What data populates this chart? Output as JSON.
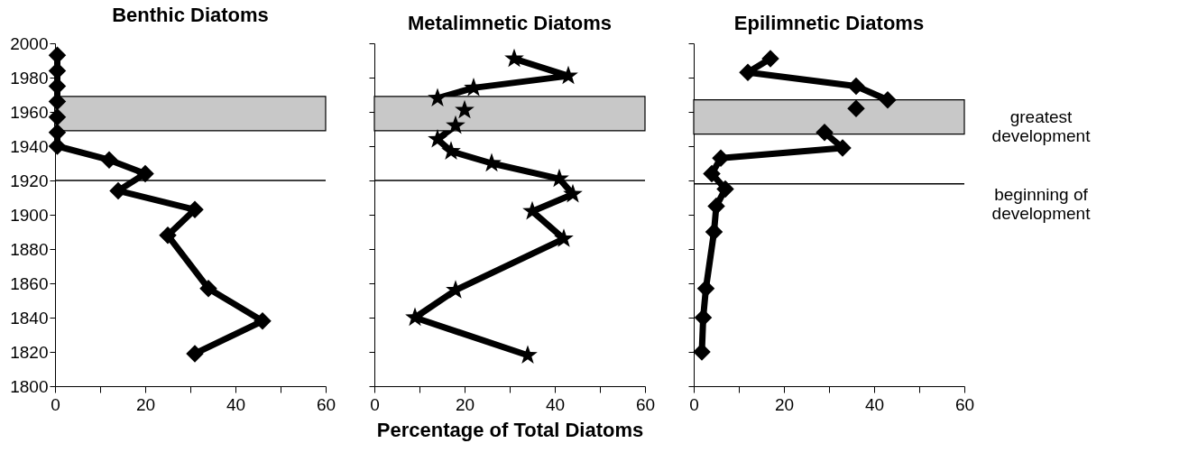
{
  "chart_data": [
    {
      "type": "line",
      "title": "Benthic Diatoms",
      "marker": "diamond",
      "line_style": "solid",
      "xlim": [
        0,
        60
      ],
      "xticks": [
        0,
        {
          "value": 10,
          "label": null
        },
        20,
        {
          "value": 30,
          "label": null
        },
        40,
        {
          "value": 50,
          "label": null
        },
        60
      ],
      "ylim": [
        1800,
        2000
      ],
      "yticks": [
        1800,
        1820,
        1840,
        1860,
        1880,
        1900,
        1920,
        1940,
        1960,
        1980,
        2000
      ],
      "series": [
        {
          "color": "#000000",
          "x": [
            0.5,
            0.5,
            0.5,
            0.5,
            0.5,
            0.5,
            0.5,
            12,
            20,
            14,
            31,
            25,
            34,
            46,
            31
          ],
          "values": [
            1993,
            1984,
            1975,
            1966,
            1957,
            1948,
            1940,
            1932,
            1924,
            1914,
            1903,
            1888,
            1857,
            1838,
            1819
          ]
        }
      ],
      "bands": [
        {
          "axis": "y",
          "from": 1949,
          "to": 1969,
          "color": "#c8c8c8"
        }
      ],
      "ref_lines": [
        {
          "axis": "y",
          "value": 1920,
          "color": "#000000"
        }
      ]
    },
    {
      "type": "line",
      "title": "Metalimnetic Diatoms",
      "xlabel": "Percentage of Total Diatoms",
      "marker": "star",
      "line_style": "solid",
      "tick_labels": "x",
      "xlim": [
        0,
        60
      ],
      "xticks": [
        0,
        {
          "value": 10,
          "label": null
        },
        20,
        {
          "value": 30,
          "label": null
        },
        40,
        {
          "value": 50,
          "label": null
        },
        60
      ],
      "ylim": [
        1800,
        2000
      ],
      "yticks": [
        {
          "value": 1800,
          "label": null
        },
        {
          "value": 1820,
          "label": null
        },
        {
          "value": 1840,
          "label": null
        },
        {
          "value": 1860,
          "label": null
        },
        {
          "value": 1880,
          "label": null
        },
        {
          "value": 1900,
          "label": null
        },
        {
          "value": 1920,
          "label": null
        },
        {
          "value": 1940,
          "label": null
        },
        {
          "value": 1960,
          "label": null
        },
        {
          "value": 1980,
          "label": null
        },
        {
          "value": 2000,
          "label": null
        }
      ],
      "series": [
        {
          "color": "#000000",
          "x": [
            31,
            43,
            22,
            14,
            20,
            18,
            14,
            17,
            26,
            41,
            44,
            35,
            42,
            18,
            9,
            34
          ],
          "values": [
            1991,
            1981,
            1974,
            1968,
            1961,
            1952,
            1944,
            1937,
            1930,
            1921,
            1912,
            1902,
            1886,
            1856,
            1840,
            1818
          ]
        }
      ],
      "bands": [
        {
          "axis": "y",
          "from": 1949,
          "to": 1969,
          "color": "#c8c8c8"
        }
      ],
      "ref_lines": [
        {
          "axis": "y",
          "value": 1920,
          "color": "#000000"
        }
      ]
    },
    {
      "type": "line",
      "title": "Epilimnetic Diatoms",
      "marker": "diamond",
      "line_style": "solid",
      "tick_labels": "x",
      "xlim": [
        0,
        60
      ],
      "xticks": [
        0,
        {
          "value": 10,
          "label": null
        },
        20,
        {
          "value": 30,
          "label": null
        },
        40,
        {
          "value": 50,
          "label": null
        },
        60
      ],
      "ylim": [
        1800,
        2000
      ],
      "yticks": [
        {
          "value": 1800,
          "label": null
        },
        {
          "value": 1820,
          "label": null
        },
        {
          "value": 1840,
          "label": null
        },
        {
          "value": 1860,
          "label": null
        },
        {
          "value": 1880,
          "label": null
        },
        {
          "value": 1900,
          "label": null
        },
        {
          "value": 1920,
          "label": null
        },
        {
          "value": 1940,
          "label": null
        },
        {
          "value": 1960,
          "label": null
        },
        {
          "value": 1980,
          "label": null
        },
        {
          "value": 2000,
          "label": null
        }
      ],
      "series": [
        {
          "color": "#000000",
          "x": [
            17,
            12,
            36,
            43,
            36,
            29,
            33,
            6,
            4,
            7,
            5,
            4.5,
            2.7,
            2.1,
            1.8
          ],
          "values": [
            1991,
            1983,
            1975,
            1967,
            1962,
            1948,
            1939,
            1933,
            1924,
            1915,
            1905,
            1890,
            1857,
            1840,
            1820
          ]
        }
      ],
      "bands": [
        {
          "axis": "y",
          "from": 1947,
          "to": 1967,
          "color": "#c8c8c8",
          "label": "greatest\ndevelopment"
        }
      ],
      "ref_lines": [
        {
          "axis": "y",
          "value": 1918,
          "color": "#000000",
          "label": "beginning of\ndevelopment"
        }
      ]
    }
  ]
}
